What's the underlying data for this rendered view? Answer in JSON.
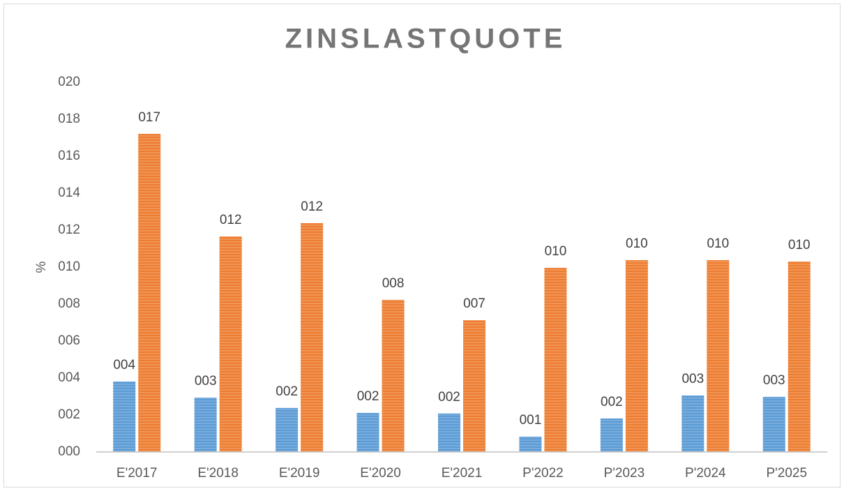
{
  "chart_data": {
    "type": "bar",
    "title": "ZINSLASTQUOTE",
    "y_label": "%",
    "categories": [
      "E'2017",
      "E'2018",
      "E'2019",
      "E'2020",
      "E'2021",
      "P'2022",
      "P'2023",
      "P'2024",
      "P'2025"
    ],
    "series": [
      {
        "color": "#5b9bd5",
        "values": [
          3.81,
          2.94,
          2.38,
          2.11,
          2.08,
          0.83,
          1.81,
          3.06,
          2.98
        ],
        "value_labels": [
          "004",
          "003",
          "002",
          "002",
          "002",
          "001",
          "002",
          "003",
          "003"
        ]
      },
      {
        "color": "#ed7d31",
        "values": [
          17.21,
          11.66,
          12.38,
          8.23,
          7.13,
          9.96,
          10.38,
          10.38,
          10.3
        ],
        "value_labels": [
          "017",
          "012",
          "012",
          "008",
          "007",
          "010",
          "010",
          "010",
          "010"
        ]
      }
    ],
    "ylim": [
      0,
      20
    ],
    "yticks": [
      {
        "value": 0,
        "label": "000"
      },
      {
        "value": 2,
        "label": "002"
      },
      {
        "value": 4,
        "label": "004"
      },
      {
        "value": 6,
        "label": "006"
      },
      {
        "value": 8,
        "label": "008"
      },
      {
        "value": 10,
        "label": "010"
      },
      {
        "value": 12,
        "label": "012"
      },
      {
        "value": 14,
        "label": "014"
      },
      {
        "value": 16,
        "label": "016"
      },
      {
        "value": 18,
        "label": "018"
      },
      {
        "value": 20,
        "label": "020"
      }
    ],
    "grid": false
  }
}
